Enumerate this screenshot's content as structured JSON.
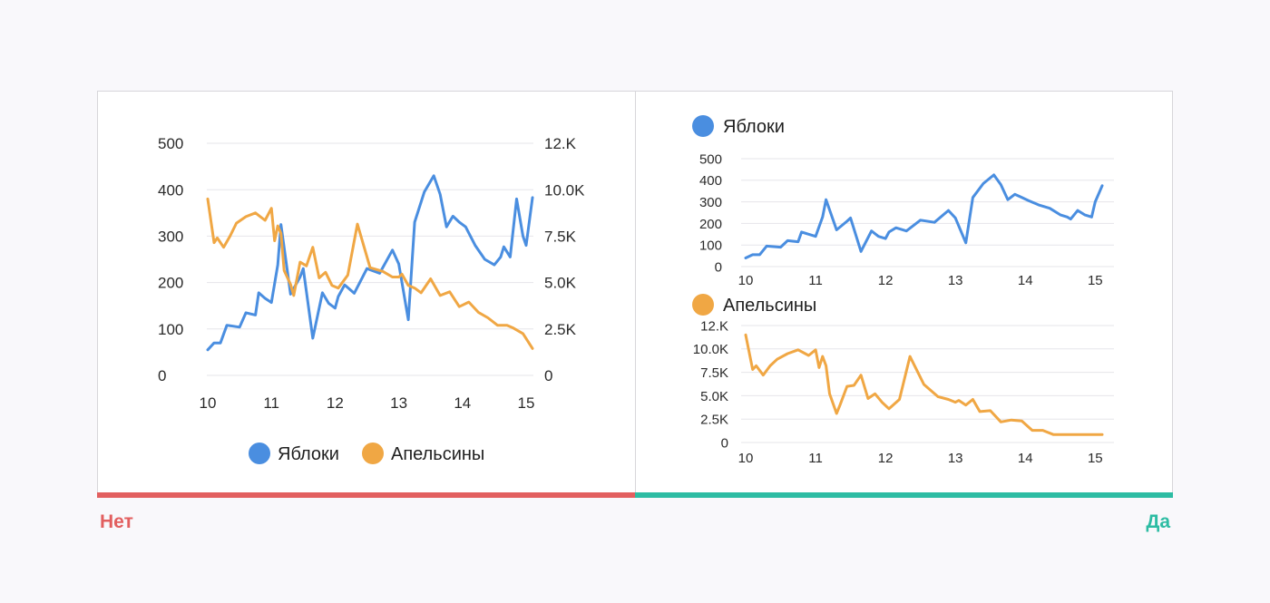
{
  "labels": {
    "bad": "Нет",
    "good": "Да"
  },
  "colors": {
    "apples": "#4a8ee0",
    "oranges": "#f0a744",
    "bad": "#e25f5f",
    "good": "#2dbca3"
  },
  "chart_data": [
    {
      "type": "line",
      "variant": "dual-axis",
      "x_ticks": [
        "10",
        "11",
        "12",
        "13",
        "14",
        "15"
      ],
      "xlim": [
        10,
        15.1
      ],
      "y_left": {
        "ticks": [
          "0",
          "100",
          "200",
          "300",
          "400",
          "500"
        ],
        "ylim": [
          0,
          500
        ]
      },
      "y_right": {
        "ticks": [
          "0",
          "2.5K",
          "5.0K",
          "7.5K",
          "10.0K",
          "12.K"
        ],
        "ylim": [
          0,
          12500
        ]
      },
      "legend_position": "bottom",
      "grid": true,
      "series": [
        {
          "name": "Яблоки",
          "axis": "left",
          "x": [
            10,
            10.1,
            10.2,
            10.3,
            10.5,
            10.6,
            10.75,
            10.8,
            10.9,
            11.0,
            11.1,
            11.15,
            11.3,
            11.45,
            11.5,
            11.65,
            11.8,
            11.9,
            12.0,
            12.05,
            12.15,
            12.3,
            12.5,
            12.7,
            12.9,
            13.0,
            13.15,
            13.25,
            13.4,
            13.55,
            13.65,
            13.75,
            13.85,
            13.95,
            14.05,
            14.2,
            14.35,
            14.5,
            14.6,
            14.65,
            14.75,
            14.85,
            14.95,
            15.0,
            15.1
          ],
          "values": [
            55,
            70,
            70,
            108,
            104,
            135,
            130,
            178,
            166,
            157,
            238,
            325,
            175,
            212,
            230,
            80,
            178,
            155,
            145,
            170,
            195,
            177,
            230,
            220,
            270,
            240,
            120,
            330,
            395,
            430,
            390,
            320,
            343,
            330,
            320,
            280,
            250,
            238,
            255,
            277,
            255,
            380,
            300,
            280,
            383
          ]
        },
        {
          "name": "Апельсины",
          "axis": "right",
          "x": [
            10,
            10.1,
            10.15,
            10.25,
            10.35,
            10.45,
            10.6,
            10.75,
            10.9,
            11.0,
            11.05,
            11.1,
            11.15,
            11.2,
            11.3,
            11.35,
            11.45,
            11.55,
            11.65,
            11.75,
            11.85,
            11.95,
            12.05,
            12.2,
            12.35,
            12.55,
            12.75,
            12.9,
            13.0,
            13.05,
            13.15,
            13.25,
            13.35,
            13.5,
            13.65,
            13.8,
            13.95,
            14.1,
            14.25,
            14.4,
            14.55,
            14.7,
            14.8,
            14.95,
            15.1
          ],
          "values": [
            9500,
            7150,
            7400,
            6900,
            7500,
            8200,
            8550,
            8750,
            8350,
            9000,
            7250,
            8050,
            7650,
            5650,
            4900,
            4300,
            6100,
            5900,
            6900,
            5250,
            5550,
            4850,
            4700,
            5400,
            8150,
            5800,
            5600,
            5300,
            5300,
            5450,
            4850,
            4700,
            4450,
            5200,
            4300,
            4500,
            3700,
            3950,
            3400,
            3100,
            2700,
            2700,
            2550,
            2250,
            1450
          ]
        }
      ]
    },
    {
      "type": "line",
      "x_ticks": [
        "10",
        "11",
        "12",
        "13",
        "14",
        "15"
      ],
      "xlim": [
        10,
        15.1
      ],
      "y_ticks": [
        "0",
        "100",
        "200",
        "300",
        "400",
        "500"
      ],
      "ylim": [
        0,
        500
      ],
      "legend_position": "top-left",
      "grid": true,
      "series": [
        {
          "name": "Яблоки",
          "x": [
            10,
            10.1,
            10.2,
            10.3,
            10.5,
            10.6,
            10.75,
            10.8,
            10.9,
            11.0,
            11.1,
            11.15,
            11.3,
            11.45,
            11.5,
            11.65,
            11.8,
            11.9,
            12.0,
            12.05,
            12.15,
            12.3,
            12.5,
            12.7,
            12.9,
            13.0,
            13.15,
            13.25,
            13.4,
            13.55,
            13.65,
            13.75,
            13.85,
            13.95,
            14.05,
            14.2,
            14.35,
            14.5,
            14.6,
            14.65,
            14.75,
            14.85,
            14.95,
            15.0,
            15.1
          ],
          "values": [
            40,
            55,
            55,
            95,
            90,
            120,
            115,
            160,
            150,
            140,
            230,
            310,
            170,
            210,
            225,
            70,
            165,
            140,
            130,
            160,
            180,
            165,
            215,
            205,
            260,
            225,
            110,
            320,
            385,
            425,
            380,
            310,
            335,
            320,
            305,
            285,
            270,
            240,
            230,
            220,
            260,
            240,
            230,
            300,
            375
          ]
        }
      ]
    },
    {
      "type": "line",
      "x_ticks": [
        "10",
        "11",
        "12",
        "13",
        "14",
        "15"
      ],
      "xlim": [
        10,
        15.1
      ],
      "y_ticks": [
        "0",
        "2.5K",
        "5.0K",
        "7.5K",
        "10.0K",
        "12.K"
      ],
      "ylim": [
        0,
        12500
      ],
      "legend_position": "top-left",
      "grid": true,
      "series": [
        {
          "name": "Апельсины",
          "x": [
            10,
            10.1,
            10.15,
            10.25,
            10.35,
            10.45,
            10.6,
            10.75,
            10.9,
            11.0,
            11.05,
            11.1,
            11.15,
            11.2,
            11.3,
            11.35,
            11.45,
            11.55,
            11.65,
            11.75,
            11.85,
            11.95,
            12.05,
            12.2,
            12.35,
            12.55,
            12.75,
            12.9,
            13.0,
            13.05,
            13.15,
            13.25,
            13.35,
            13.5,
            13.65,
            13.8,
            13.95,
            14.1,
            14.25,
            14.4,
            14.55,
            14.7,
            14.8,
            14.95,
            15.1
          ],
          "values": [
            11500,
            7800,
            8200,
            7200,
            8200,
            8900,
            9500,
            9900,
            9300,
            9900,
            8000,
            9200,
            8200,
            5200,
            3100,
            4000,
            6000,
            6100,
            7200,
            4700,
            5200,
            4300,
            3600,
            4600,
            9200,
            6200,
            4900,
            4600,
            4300,
            4500,
            4000,
            4600,
            3300,
            3400,
            2200,
            2400,
            2300,
            1300,
            1300,
            850,
            850,
            850,
            850,
            850,
            850
          ]
        }
      ]
    }
  ]
}
